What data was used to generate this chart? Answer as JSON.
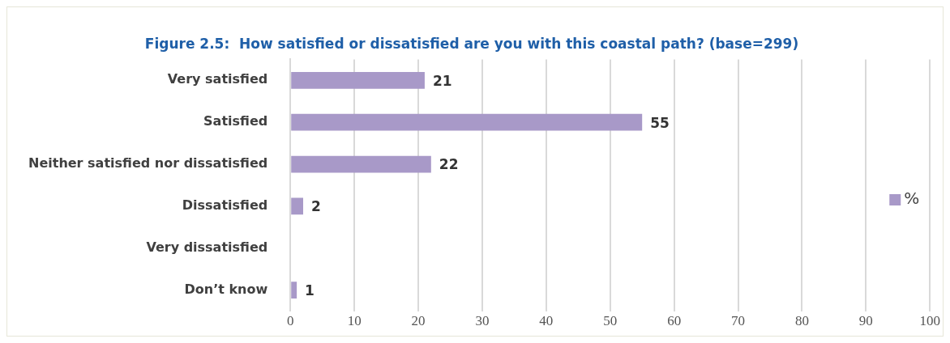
{
  "chart_data": {
    "type": "bar",
    "orientation": "horizontal",
    "title": "Figure 2.5:  How satisfied or dissatisfied are you with this coastal path? (base=299)",
    "categories": [
      "Very satisfied",
      "Satisfied",
      "Neither satisfied nor dissatisfied",
      "Dissatisfied",
      "Very dissatisfied",
      "Don’t know"
    ],
    "series": [
      {
        "name": "%",
        "color": "#a899c8",
        "values": [
          21,
          55,
          22,
          2,
          0,
          1
        ],
        "value_labels": [
          "21",
          "55",
          "22",
          "2",
          null,
          "1"
        ]
      }
    ],
    "xlim": [
      0,
      100
    ],
    "xticks": [
      0,
      10,
      20,
      30,
      40,
      50,
      60,
      70,
      80,
      90,
      100
    ],
    "grid": "x",
    "legend": "right"
  }
}
